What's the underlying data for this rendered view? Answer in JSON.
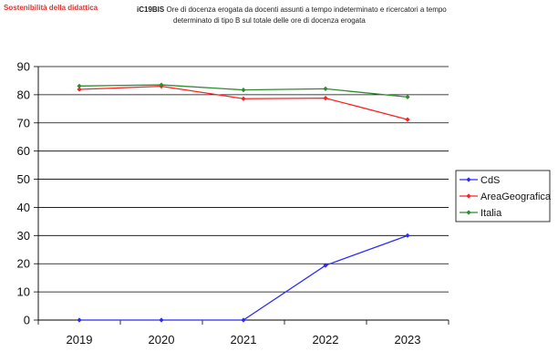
{
  "header": {
    "section_label": "Sostenibilità della didattica",
    "indicator_code": "iC19BIS",
    "title_line1": "Ore di docenza erogata da docenti assunti a tempo indeterminato e ricercatori a tempo",
    "title_line2": "determinato di tipo B sul totale delle ore di docenza erogata"
  },
  "chart_data": {
    "type": "line",
    "title": "",
    "xlabel": "",
    "ylabel": "",
    "categories": [
      "2019",
      "2020",
      "2021",
      "2022",
      "2023"
    ],
    "ylim": [
      0,
      90
    ],
    "yticks": [
      0,
      10,
      20,
      30,
      40,
      50,
      60,
      70,
      80,
      90
    ],
    "grid": true,
    "legend_position": "right",
    "series": [
      {
        "name": "CdS",
        "color": "#2b2bff",
        "values": [
          0,
          0,
          0,
          19.4,
          30
        ]
      },
      {
        "name": "AreaGeografica",
        "color": "#ff2020",
        "values": [
          81.9,
          83.0,
          78.6,
          78.8,
          71.2
        ]
      },
      {
        "name": "Italia",
        "color": "#2e8b2e",
        "values": [
          83.1,
          83.5,
          81.7,
          82.1,
          79.2
        ]
      }
    ]
  }
}
